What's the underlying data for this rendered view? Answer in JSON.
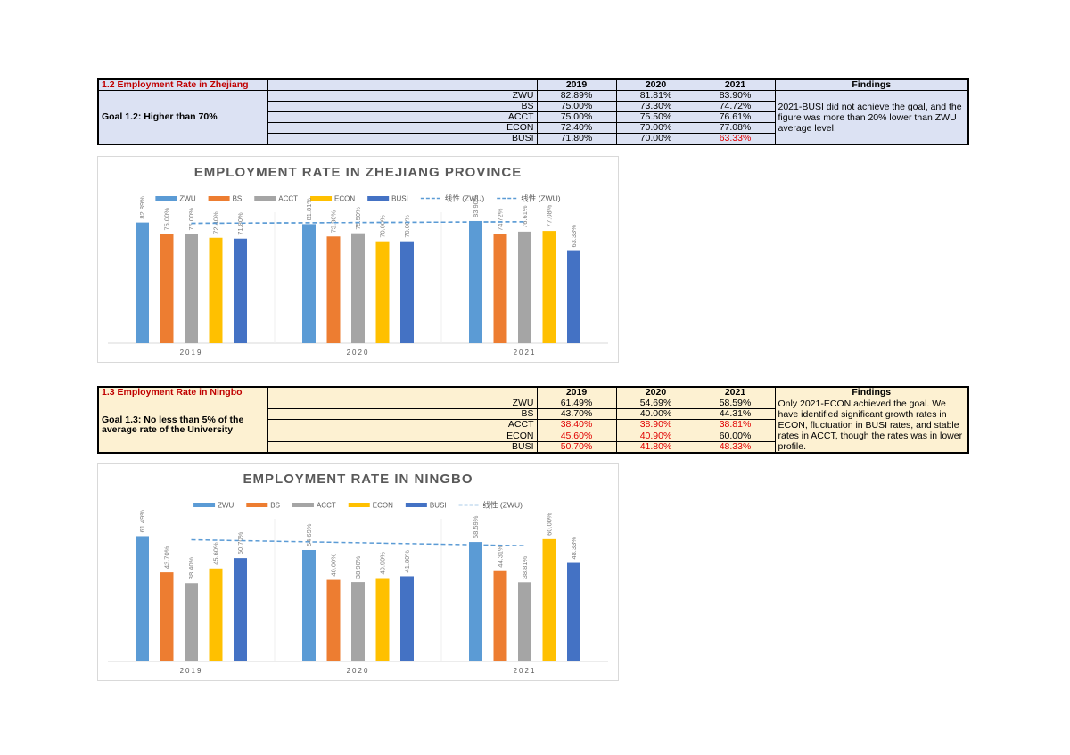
{
  "tables": [
    {
      "title": "1.2 Employment Rate in Zhejiang",
      "goal": "Goal 1.2: Higher than 70%",
      "background": "#dce2f3",
      "columns": [
        "2019",
        "2020",
        "2021",
        "Findings"
      ],
      "rows": [
        {
          "label": "ZWU",
          "cells": [
            "82.89%",
            "81.81%",
            "83.90%"
          ],
          "red": [
            false,
            false,
            false
          ]
        },
        {
          "label": "BS",
          "cells": [
            "75.00%",
            "73.30%",
            "74.72%"
          ],
          "red": [
            false,
            false,
            false
          ]
        },
        {
          "label": "ACCT",
          "cells": [
            "75.00%",
            "75.50%",
            "76.61%"
          ],
          "red": [
            false,
            false,
            false
          ]
        },
        {
          "label": "ECON",
          "cells": [
            "72.40%",
            "70.00%",
            "77.08%"
          ],
          "red": [
            false,
            false,
            false
          ]
        },
        {
          "label": "BUSI",
          "cells": [
            "71.80%",
            "70.00%",
            "63.33%"
          ],
          "red": [
            false,
            false,
            true
          ]
        }
      ],
      "findings": "2021-BUSI did not achieve the goal, and the figure was more than 20% lower than ZWU average level."
    },
    {
      "title": "1.3 Employment Rate in Ningbo",
      "goal": "Goal 1.3: No less than 5% of the average rate of the University",
      "background": "#fdf1d2",
      "columns": [
        "2019",
        "2020",
        "2021",
        "Findings"
      ],
      "rows": [
        {
          "label": "ZWU",
          "cells": [
            "61.49%",
            "54.69%",
            "58.59%"
          ],
          "red": [
            false,
            false,
            false
          ]
        },
        {
          "label": "BS",
          "cells": [
            "43.70%",
            "40.00%",
            "44.31%"
          ],
          "red": [
            false,
            false,
            false
          ]
        },
        {
          "label": "ACCT",
          "cells": [
            "38.40%",
            "38.90%",
            "38.81%"
          ],
          "red": [
            true,
            true,
            true
          ]
        },
        {
          "label": "ECON",
          "cells": [
            "45.60%",
            "40.90%",
            "60.00%"
          ],
          "red": [
            true,
            true,
            false
          ]
        },
        {
          "label": "BUSI",
          "cells": [
            "50.70%",
            "41.80%",
            "48.33%"
          ],
          "red": [
            true,
            true,
            true
          ]
        }
      ],
      "findings": "Only 2021-ECON achieved the goal. We have identified significant growth rates in ECON, fluctuation in BUSI rates, and stable rates in ACCT, though the rates was in lower profile."
    }
  ],
  "chart_data": [
    {
      "type": "bar",
      "title": "EMPLOYMENT RATE IN ZHEJIANG PROVINCE",
      "categories": [
        "2019",
        "2020",
        "2021"
      ],
      "ylim": [
        0,
        90
      ],
      "series": [
        {
          "name": "ZWU",
          "color": "#5b9bd5",
          "values": [
            82.89,
            81.81,
            83.9
          ],
          "value_labels": [
            "82.89%",
            "81.81%",
            "83.90%"
          ]
        },
        {
          "name": "BS",
          "color": "#ed7d31",
          "values": [
            75.0,
            73.3,
            74.72
          ],
          "value_labels": [
            "75.00%",
            "73.30%",
            "74.72%"
          ]
        },
        {
          "name": "ACCT",
          "color": "#a5a5a5",
          "values": [
            75.0,
            75.5,
            76.61
          ],
          "value_labels": [
            "75.00%",
            "75.50%",
            "76.61%"
          ]
        },
        {
          "name": "ECON",
          "color": "#ffc000",
          "values": [
            72.4,
            70.0,
            77.08
          ],
          "value_labels": [
            "72.40%",
            "70.00%",
            "77.08%"
          ]
        },
        {
          "name": "BUSI",
          "color": "#4472c4",
          "values": [
            71.8,
            70.0,
            63.33
          ],
          "value_labels": [
            "71.80%",
            "70.00%",
            "63.33%"
          ]
        }
      ],
      "trendlines": [
        {
          "name": "线性 (ZWU)",
          "series_index": 0
        },
        {
          "name": "线性 (ZWU)",
          "series_index": 0
        }
      ]
    },
    {
      "type": "bar",
      "title": "EMPLOYMENT RATE IN NINGBO",
      "categories": [
        "2019",
        "2020",
        "2021"
      ],
      "ylim": [
        0,
        70
      ],
      "series": [
        {
          "name": "ZWU",
          "color": "#5b9bd5",
          "values": [
            61.49,
            54.69,
            58.59
          ],
          "value_labels": [
            "61.49%",
            "54.69%",
            "58.59%"
          ]
        },
        {
          "name": "BS",
          "color": "#ed7d31",
          "values": [
            43.7,
            40.0,
            44.31
          ],
          "value_labels": [
            "43.70%",
            "40.00%",
            "44.31%"
          ]
        },
        {
          "name": "ACCT",
          "color": "#a5a5a5",
          "values": [
            38.4,
            38.9,
            38.81
          ],
          "value_labels": [
            "38.40%",
            "38.90%",
            "38.81%"
          ]
        },
        {
          "name": "ECON",
          "color": "#ffc000",
          "values": [
            45.6,
            40.9,
            60.0
          ],
          "value_labels": [
            "45.60%",
            "40.90%",
            "60.00%"
          ]
        },
        {
          "name": "BUSI",
          "color": "#4472c4",
          "values": [
            50.7,
            41.8,
            48.33
          ],
          "value_labels": [
            "50.70%",
            "41.80%",
            "48.33%"
          ]
        }
      ],
      "trendlines": [
        {
          "name": "线性 (ZWU)",
          "series_index": 0
        }
      ]
    }
  ]
}
